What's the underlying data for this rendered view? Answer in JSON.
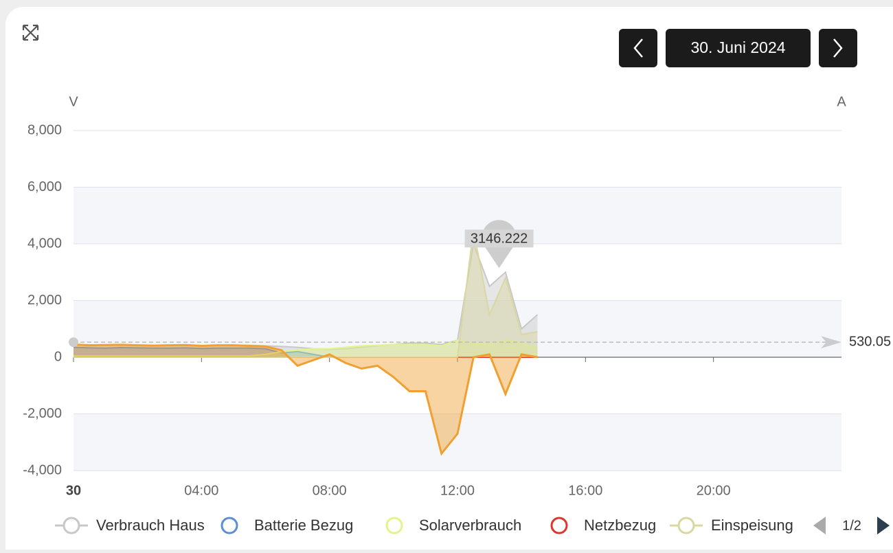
{
  "header": {
    "date": "30. Juni 2024"
  },
  "chart_data": {
    "type": "area",
    "y_axis_label": "V",
    "y2_axis_label": "A",
    "xlim": [
      0,
      24
    ],
    "xticks": [
      {
        "value": 0,
        "label": "30"
      },
      {
        "value": 4,
        "label": "04:00"
      },
      {
        "value": 8,
        "label": "08:00"
      },
      {
        "value": 12,
        "label": "12:00"
      },
      {
        "value": 16,
        "label": "16:00"
      },
      {
        "value": 20,
        "label": "20:00"
      }
    ],
    "ylim": [
      -4000,
      8000
    ],
    "yticks": [
      {
        "value": -4000,
        "label": "-4,000"
      },
      {
        "value": -2000,
        "label": "-2,000"
      },
      0,
      {
        "value": 2000,
        "label": "2,000"
      },
      {
        "value": 4000,
        "label": "4,000"
      },
      {
        "value": 6000,
        "label": "6,000"
      },
      {
        "value": 8000,
        "label": "8,000"
      }
    ],
    "grid": true,
    "x": [
      0,
      0.5,
      1,
      1.5,
      2,
      2.5,
      3,
      3.5,
      4,
      4.5,
      5,
      5.5,
      6,
      6.5,
      7,
      7.5,
      8,
      8.5,
      9,
      9.5,
      10,
      10.5,
      11,
      11.5,
      12,
      12.5,
      13,
      13.5,
      14,
      14.5
    ],
    "series": [
      {
        "name": "Verbrauch Haus",
        "color": "#c8c8c8",
        "values": [
          450,
          430,
          420,
          440,
          430,
          420,
          420,
          430,
          410,
          420,
          420,
          420,
          400,
          380,
          350,
          300,
          280,
          300,
          350,
          400,
          450,
          500,
          500,
          450,
          600,
          4000,
          2500,
          3000,
          1000,
          1500
        ]
      },
      {
        "name": "Batterie Bezug",
        "color": "#5b8ed6",
        "values": [
          350,
          330,
          320,
          340,
          330,
          320,
          320,
          330,
          310,
          320,
          320,
          320,
          300,
          150,
          200,
          100,
          0,
          0,
          0,
          0,
          0,
          0,
          0,
          0,
          0,
          0,
          0,
          0,
          0,
          0
        ]
      },
      {
        "name": "Solarverbrauch",
        "color": "#e2f58a",
        "values": [
          50,
          50,
          50,
          50,
          50,
          50,
          50,
          50,
          50,
          50,
          50,
          50,
          100,
          200,
          250,
          300,
          300,
          350,
          400,
          420,
          450,
          450,
          450,
          400,
          600,
          500,
          450,
          600,
          500,
          300
        ]
      },
      {
        "name": "Netzbezug",
        "color": "#e0352b",
        "values": [
          0,
          0,
          0,
          0,
          0,
          0,
          0,
          0,
          0,
          0,
          0,
          0,
          0,
          0,
          0,
          0,
          0,
          0,
          0,
          0,
          0,
          0,
          0,
          0,
          0,
          0,
          0,
          0,
          0,
          0
        ]
      },
      {
        "name": "Einspeisung",
        "color": "#d9d8a0",
        "values": [
          0,
          0,
          0,
          0,
          0,
          0,
          0,
          0,
          0,
          0,
          0,
          0,
          0,
          0,
          0,
          0,
          0,
          0,
          0,
          0,
          0,
          0,
          0,
          0,
          0,
          4500,
          1500,
          2800,
          800,
          900
        ]
      },
      {
        "color": "#f0a030",
        "values": [
          450,
          420,
          430,
          440,
          420,
          410,
          420,
          430,
          400,
          420,
          420,
          400,
          380,
          250,
          -300,
          -100,
          100,
          -200,
          -400,
          -300,
          -700,
          -1200,
          -1200,
          -3400,
          -2700,
          0,
          100,
          -1300,
          100,
          0
        ]
      }
    ],
    "markpoint": {
      "x": 13.3,
      "value": 3146.222
    },
    "markline": {
      "value": 530.05
    },
    "legend_page": "1/2"
  }
}
